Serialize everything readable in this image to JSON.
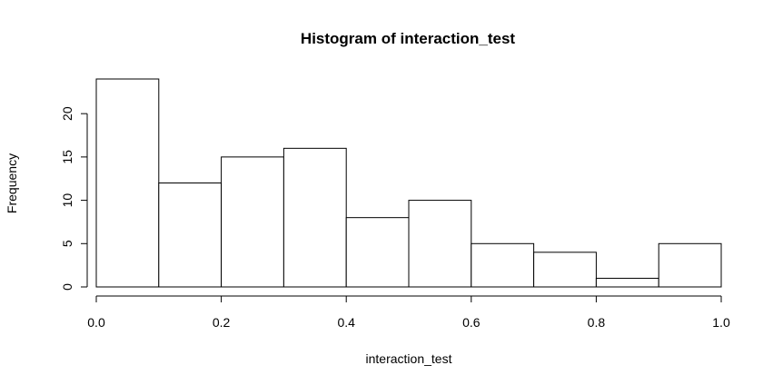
{
  "chart_data": {
    "type": "bar",
    "title": "Histogram of interaction_test",
    "xlabel": "interaction_test",
    "ylabel": "Frequency",
    "bins": [
      {
        "start": 0.0,
        "end": 0.1,
        "count": 24
      },
      {
        "start": 0.1,
        "end": 0.2,
        "count": 12
      },
      {
        "start": 0.2,
        "end": 0.3,
        "count": 15
      },
      {
        "start": 0.3,
        "end": 0.4,
        "count": 16
      },
      {
        "start": 0.4,
        "end": 0.5,
        "count": 8
      },
      {
        "start": 0.5,
        "end": 0.6,
        "count": 10
      },
      {
        "start": 0.6,
        "end": 0.7,
        "count": 5
      },
      {
        "start": 0.7,
        "end": 0.8,
        "count": 4
      },
      {
        "start": 0.8,
        "end": 0.9,
        "count": 1
      },
      {
        "start": 0.9,
        "end": 1.0,
        "count": 5
      }
    ],
    "xlim": [
      0.0,
      1.0
    ],
    "ylim": [
      0,
      24
    ],
    "x_ticks": [
      "0.0",
      "0.2",
      "0.4",
      "0.6",
      "0.8",
      "1.0"
    ],
    "y_ticks": [
      "0",
      "5",
      "10",
      "15",
      "20"
    ],
    "grid": false,
    "bar_fill": "#ffffff",
    "bar_stroke": "#000000"
  }
}
